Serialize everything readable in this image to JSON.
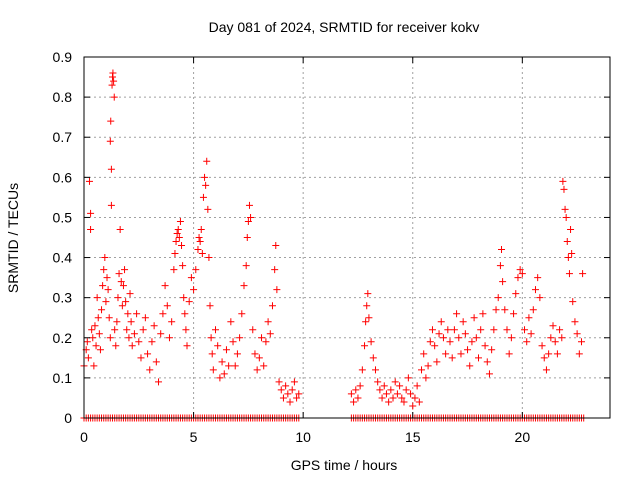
{
  "chart_data": {
    "type": "scatter",
    "title": "Day 081 of 2024, SRMTID for receiver kokv",
    "xlabel": "GPS time / hours",
    "ylabel": "SRMTID / TECUs",
    "xlim": [
      0,
      24
    ],
    "ylim": [
      0,
      0.9
    ],
    "x_ticks": [
      0,
      5,
      10,
      15,
      20
    ],
    "x_tick_labels": [
      "0",
      "5",
      "10",
      "15",
      "20"
    ],
    "y_ticks": [
      0,
      0.1,
      0.2,
      0.3,
      0.4,
      0.5,
      0.6,
      0.7,
      0.8,
      0.9
    ],
    "y_tick_labels": [
      "0",
      "0.1",
      "0.2",
      "0.3",
      "0.4",
      "0.5",
      "0.6",
      "0.7",
      "0.8",
      "0.9"
    ],
    "grid": true,
    "marker": "+",
    "series": [
      {
        "name": "SRMTID",
        "color": "#ff0000",
        "points": [
          [
            0.0,
            0.13
          ],
          [
            0.1,
            0.17
          ],
          [
            0.15,
            0.19
          ],
          [
            0.2,
            0.15
          ],
          [
            0.25,
            0.59
          ],
          [
            0.3,
            0.47
          ],
          [
            0.3,
            0.51
          ],
          [
            0.35,
            0.22
          ],
          [
            0.4,
            0.2
          ],
          [
            0.45,
            0.13
          ],
          [
            0.5,
            0.23
          ],
          [
            0.55,
            0.18
          ],
          [
            0.6,
            0.3
          ],
          [
            0.65,
            0.25
          ],
          [
            0.7,
            0.21
          ],
          [
            0.75,
            0.17
          ],
          [
            0.8,
            0.27
          ],
          [
            0.85,
            0.33
          ],
          [
            0.9,
            0.37
          ],
          [
            0.95,
            0.4
          ],
          [
            1.0,
            0.29
          ],
          [
            1.05,
            0.35
          ],
          [
            1.1,
            0.32
          ],
          [
            1.15,
            0.25
          ],
          [
            1.2,
            0.2
          ],
          [
            1.2,
            0.69
          ],
          [
            1.22,
            0.74
          ],
          [
            1.25,
            0.62
          ],
          [
            1.25,
            0.53
          ],
          [
            1.28,
            0.83
          ],
          [
            1.3,
            0.85
          ],
          [
            1.32,
            0.86
          ],
          [
            1.35,
            0.84
          ],
          [
            1.38,
            0.8
          ],
          [
            1.4,
            0.22
          ],
          [
            1.45,
            0.18
          ],
          [
            1.5,
            0.24
          ],
          [
            1.55,
            0.3
          ],
          [
            1.6,
            0.36
          ],
          [
            1.65,
            0.47
          ],
          [
            1.7,
            0.34
          ],
          [
            1.75,
            0.28
          ],
          [
            1.8,
            0.33
          ],
          [
            1.85,
            0.37
          ],
          [
            1.9,
            0.29
          ],
          [
            1.95,
            0.22
          ],
          [
            2.0,
            0.26
          ],
          [
            2.05,
            0.2
          ],
          [
            2.1,
            0.31
          ],
          [
            2.15,
            0.24
          ],
          [
            2.2,
            0.18
          ],
          [
            2.3,
            0.21
          ],
          [
            2.4,
            0.26
          ],
          [
            2.5,
            0.19
          ],
          [
            2.6,
            0.15
          ],
          [
            2.7,
            0.22
          ],
          [
            2.8,
            0.25
          ],
          [
            2.9,
            0.16
          ],
          [
            3.0,
            0.12
          ],
          [
            3.1,
            0.19
          ],
          [
            3.2,
            0.23
          ],
          [
            3.3,
            0.14
          ],
          [
            3.4,
            0.09
          ],
          [
            3.5,
            0.21
          ],
          [
            3.6,
            0.26
          ],
          [
            3.7,
            0.33
          ],
          [
            3.8,
            0.28
          ],
          [
            3.9,
            0.2
          ],
          [
            4.0,
            0.24
          ],
          [
            4.1,
            0.37
          ],
          [
            4.15,
            0.41
          ],
          [
            4.2,
            0.44
          ],
          [
            4.25,
            0.46
          ],
          [
            4.3,
            0.47
          ],
          [
            4.35,
            0.45
          ],
          [
            4.4,
            0.49
          ],
          [
            4.45,
            0.43
          ],
          [
            4.5,
            0.38
          ],
          [
            4.55,
            0.3
          ],
          [
            4.6,
            0.26
          ],
          [
            4.65,
            0.22
          ],
          [
            4.7,
            0.18
          ],
          [
            4.8,
            0.29
          ],
          [
            4.9,
            0.35
          ],
          [
            5.0,
            0.32
          ],
          [
            5.1,
            0.37
          ],
          [
            5.2,
            0.42
          ],
          [
            5.25,
            0.45
          ],
          [
            5.3,
            0.44
          ],
          [
            5.35,
            0.47
          ],
          [
            5.4,
            0.41
          ],
          [
            5.45,
            0.55
          ],
          [
            5.5,
            0.6
          ],
          [
            5.55,
            0.58
          ],
          [
            5.6,
            0.64
          ],
          [
            5.65,
            0.52
          ],
          [
            5.7,
            0.4
          ],
          [
            5.75,
            0.28
          ],
          [
            5.8,
            0.2
          ],
          [
            5.85,
            0.16
          ],
          [
            5.9,
            0.12
          ],
          [
            6.0,
            0.22
          ],
          [
            6.1,
            0.18
          ],
          [
            6.2,
            0.1
          ],
          [
            6.3,
            0.14
          ],
          [
            6.4,
            0.11
          ],
          [
            6.5,
            0.17
          ],
          [
            6.6,
            0.13
          ],
          [
            6.7,
            0.24
          ],
          [
            6.8,
            0.19
          ],
          [
            6.9,
            0.13
          ],
          [
            7.0,
            0.16
          ],
          [
            7.1,
            0.2
          ],
          [
            7.2,
            0.26
          ],
          [
            7.3,
            0.33
          ],
          [
            7.4,
            0.38
          ],
          [
            7.45,
            0.45
          ],
          [
            7.5,
            0.49
          ],
          [
            7.55,
            0.53
          ],
          [
            7.6,
            0.5
          ],
          [
            7.7,
            0.22
          ],
          [
            7.8,
            0.16
          ],
          [
            7.9,
            0.12
          ],
          [
            8.0,
            0.15
          ],
          [
            8.1,
            0.2
          ],
          [
            8.2,
            0.13
          ],
          [
            8.3,
            0.19
          ],
          [
            8.4,
            0.24
          ],
          [
            8.5,
            0.21
          ],
          [
            8.6,
            0.28
          ],
          [
            8.7,
            0.37
          ],
          [
            8.75,
            0.43
          ],
          [
            8.8,
            0.32
          ],
          [
            8.9,
            0.09
          ],
          [
            9.0,
            0.07
          ],
          [
            9.1,
            0.05
          ],
          [
            9.2,
            0.08
          ],
          [
            9.3,
            0.06
          ],
          [
            9.4,
            0.04
          ],
          [
            9.5,
            0.07
          ],
          [
            9.6,
            0.09
          ],
          [
            9.7,
            0.05
          ],
          [
            9.8,
            0.06
          ],
          [
            12.2,
            0.06
          ],
          [
            12.3,
            0.04
          ],
          [
            12.4,
            0.07
          ],
          [
            12.5,
            0.05
          ],
          [
            12.6,
            0.08
          ],
          [
            12.7,
            0.12
          ],
          [
            12.8,
            0.18
          ],
          [
            12.85,
            0.24
          ],
          [
            12.9,
            0.28
          ],
          [
            12.95,
            0.31
          ],
          [
            13.0,
            0.25
          ],
          [
            13.1,
            0.19
          ],
          [
            13.2,
            0.15
          ],
          [
            13.3,
            0.12
          ],
          [
            13.4,
            0.09
          ],
          [
            13.5,
            0.07
          ],
          [
            13.6,
            0.05
          ],
          [
            13.7,
            0.08
          ],
          [
            13.8,
            0.06
          ],
          [
            13.9,
            0.04
          ],
          [
            14.0,
            0.07
          ],
          [
            14.1,
            0.05
          ],
          [
            14.2,
            0.09
          ],
          [
            14.3,
            0.06
          ],
          [
            14.4,
            0.08
          ],
          [
            14.5,
            0.05
          ],
          [
            14.6,
            0.04
          ],
          [
            14.7,
            0.07
          ],
          [
            14.8,
            0.1
          ],
          [
            14.9,
            0.06
          ],
          [
            15.0,
            0.03
          ],
          [
            15.1,
            0.05
          ],
          [
            15.2,
            0.08
          ],
          [
            15.3,
            0.04
          ],
          [
            15.4,
            0.12
          ],
          [
            15.5,
            0.16
          ],
          [
            15.6,
            0.1
          ],
          [
            15.7,
            0.13
          ],
          [
            15.8,
            0.19
          ],
          [
            15.9,
            0.22
          ],
          [
            16.0,
            0.18
          ],
          [
            16.1,
            0.14
          ],
          [
            16.2,
            0.21
          ],
          [
            16.3,
            0.24
          ],
          [
            16.4,
            0.2
          ],
          [
            16.5,
            0.16
          ],
          [
            16.6,
            0.22
          ],
          [
            16.7,
            0.19
          ],
          [
            16.8,
            0.15
          ],
          [
            16.9,
            0.22
          ],
          [
            17.0,
            0.26
          ],
          [
            17.1,
            0.2
          ],
          [
            17.2,
            0.16
          ],
          [
            17.3,
            0.24
          ],
          [
            17.4,
            0.21
          ],
          [
            17.5,
            0.17
          ],
          [
            17.6,
            0.13
          ],
          [
            17.7,
            0.19
          ],
          [
            17.8,
            0.25
          ],
          [
            17.9,
            0.2
          ],
          [
            18.0,
            0.15
          ],
          [
            18.1,
            0.22
          ],
          [
            18.2,
            0.26
          ],
          [
            18.3,
            0.18
          ],
          [
            18.4,
            0.14
          ],
          [
            18.5,
            0.11
          ],
          [
            18.6,
            0.17
          ],
          [
            18.7,
            0.22
          ],
          [
            18.8,
            0.27
          ],
          [
            18.9,
            0.3
          ],
          [
            19.0,
            0.38
          ],
          [
            19.05,
            0.42
          ],
          [
            19.1,
            0.34
          ],
          [
            19.2,
            0.27
          ],
          [
            19.3,
            0.22
          ],
          [
            19.4,
            0.16
          ],
          [
            19.5,
            0.2
          ],
          [
            19.6,
            0.26
          ],
          [
            19.7,
            0.31
          ],
          [
            19.8,
            0.35
          ],
          [
            19.9,
            0.37
          ],
          [
            20.0,
            0.36
          ],
          [
            20.1,
            0.22
          ],
          [
            20.2,
            0.19
          ],
          [
            20.3,
            0.25
          ],
          [
            20.4,
            0.21
          ],
          [
            20.5,
            0.27
          ],
          [
            20.6,
            0.32
          ],
          [
            20.7,
            0.35
          ],
          [
            20.8,
            0.3
          ],
          [
            20.9,
            0.18
          ],
          [
            21.0,
            0.15
          ],
          [
            21.1,
            0.12
          ],
          [
            21.2,
            0.16
          ],
          [
            21.3,
            0.2
          ],
          [
            21.4,
            0.23
          ],
          [
            21.5,
            0.19
          ],
          [
            21.6,
            0.16
          ],
          [
            21.7,
            0.22
          ],
          [
            21.8,
            0.2
          ],
          [
            21.85,
            0.59
          ],
          [
            21.9,
            0.57
          ],
          [
            21.95,
            0.52
          ],
          [
            22.0,
            0.5
          ],
          [
            22.05,
            0.44
          ],
          [
            22.1,
            0.4
          ],
          [
            22.15,
            0.36
          ],
          [
            22.2,
            0.47
          ],
          [
            22.25,
            0.41
          ],
          [
            22.3,
            0.29
          ],
          [
            22.4,
            0.24
          ],
          [
            22.5,
            0.21
          ],
          [
            22.6,
            0.16
          ],
          [
            22.7,
            0.19
          ],
          [
            22.75,
            0.36
          ]
        ]
      }
    ],
    "zero_marker_spans": [
      [
        0.0,
        9.8
      ],
      [
        12.2,
        22.8
      ]
    ]
  }
}
